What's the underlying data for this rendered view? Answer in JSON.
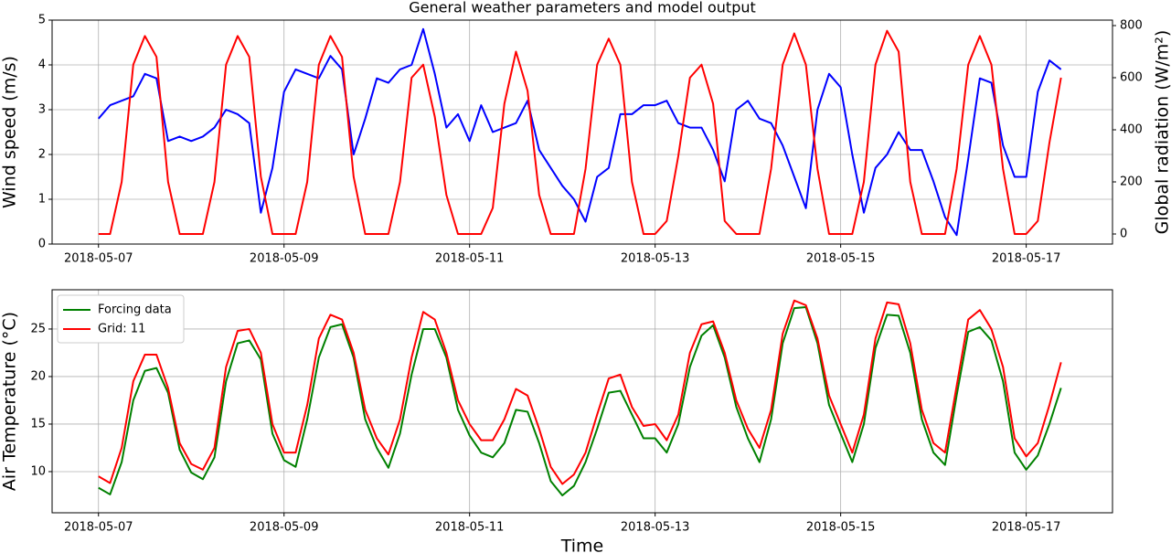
{
  "chart_data": [
    {
      "type": "line",
      "title": "General weather parameters and model output",
      "ylabel": "Wind speed (m/s)",
      "ylabel_color": "#0000ff",
      "y2label": "Global radiation (W/m²)",
      "y2label_color": "#ff0000",
      "x": [
        0,
        0.125,
        0.25,
        0.375,
        0.5,
        0.625,
        0.75,
        0.875,
        1,
        1.125,
        1.25,
        1.375,
        1.5,
        1.625,
        1.75,
        1.875,
        2,
        2.125,
        2.25,
        2.375,
        2.5,
        2.625,
        2.75,
        2.875,
        3,
        3.125,
        3.25,
        3.375,
        3.5,
        3.625,
        3.75,
        3.875,
        4,
        4.125,
        4.25,
        4.375,
        4.5,
        4.625,
        4.75,
        4.875,
        5,
        5.125,
        5.25,
        5.375,
        5.5,
        5.625,
        5.75,
        5.875,
        6,
        6.125,
        6.25,
        6.375,
        6.5,
        6.625,
        6.75,
        6.875,
        7,
        7.125,
        7.25,
        7.375,
        7.5,
        7.625,
        7.75,
        7.875,
        8,
        8.125,
        8.25,
        8.375,
        8.5,
        8.625,
        8.75,
        8.875,
        9,
        9.125,
        9.25,
        9.375,
        9.5,
        9.625,
        9.75,
        9.875,
        10,
        10.125,
        10.25,
        10.375
      ],
      "xlim": [
        -0.5,
        10.93
      ],
      "xticks": [
        {
          "value": 0,
          "label": "2018-05-07"
        },
        {
          "value": 2,
          "label": "2018-05-09"
        },
        {
          "value": 4,
          "label": "2018-05-11"
        },
        {
          "value": 6,
          "label": "2018-05-13"
        },
        {
          "value": 8,
          "label": "2018-05-15"
        },
        {
          "value": 10,
          "label": "2018-05-17"
        }
      ],
      "ylim": [
        0,
        5
      ],
      "yticks": [
        0,
        1,
        2,
        3,
        4,
        5
      ],
      "y2lim": [
        -38.6,
        821
      ],
      "y2ticks": [
        0,
        200,
        400,
        600,
        800
      ],
      "grid": true,
      "series": [
        {
          "name": "Wind speed",
          "color": "#0000ff",
          "values": [
            2.8,
            3.1,
            3.2,
            3.3,
            3.8,
            3.7,
            2.3,
            2.4,
            2.3,
            2.4,
            2.6,
            3.0,
            2.9,
            2.7,
            0.7,
            1.7,
            3.4,
            3.9,
            3.8,
            3.7,
            4.2,
            3.9,
            2.0,
            2.8,
            3.7,
            3.6,
            3.9,
            4.0,
            4.8,
            3.8,
            2.6,
            2.9,
            2.3,
            3.1,
            2.5,
            2.6,
            2.7,
            3.2,
            2.1,
            1.7,
            1.3,
            1.0,
            0.5,
            1.5,
            1.7,
            2.9,
            2.9,
            3.1,
            3.1,
            3.2,
            2.7,
            2.6,
            2.6,
            2.1,
            1.4,
            3.0,
            3.2,
            2.8,
            2.7,
            2.2,
            1.5,
            0.8,
            3.0,
            3.8,
            3.5,
            2.0,
            0.7,
            1.7,
            2.0,
            2.5,
            2.1,
            2.1,
            1.4,
            0.6,
            0.2,
            1.9,
            3.7,
            3.6,
            2.2,
            1.5,
            1.5,
            3.4,
            4.1,
            3.9
          ]
        },
        {
          "name": "Global radiation",
          "color": "#ff0000",
          "axis": "y2",
          "values": [
            0,
            0,
            200,
            650,
            760,
            680,
            200,
            0,
            0,
            0,
            200,
            650,
            760,
            680,
            220,
            0,
            0,
            0,
            200,
            650,
            760,
            680,
            220,
            0,
            0,
            0,
            200,
            600,
            650,
            450,
            150,
            0,
            0,
            0,
            100,
            500,
            700,
            550,
            150,
            0,
            0,
            0,
            250,
            650,
            750,
            650,
            200,
            0,
            0,
            50,
            300,
            600,
            650,
            500,
            50,
            0,
            0,
            0,
            250,
            650,
            770,
            650,
            250,
            0,
            0,
            0,
            200,
            650,
            780,
            700,
            200,
            0,
            0,
            0,
            250,
            650,
            760,
            650,
            250,
            0,
            0,
            50,
            350,
            600
          ]
        }
      ]
    },
    {
      "type": "line",
      "xlabel": "Time",
      "ylabel": "Air Temperature (°C)",
      "ylabel_color": "#0000ff",
      "x": [
        0,
        0.125,
        0.25,
        0.375,
        0.5,
        0.625,
        0.75,
        0.875,
        1,
        1.125,
        1.25,
        1.375,
        1.5,
        1.625,
        1.75,
        1.875,
        2,
        2.125,
        2.25,
        2.375,
        2.5,
        2.625,
        2.75,
        2.875,
        3,
        3.125,
        3.25,
        3.375,
        3.5,
        3.625,
        3.75,
        3.875,
        4,
        4.125,
        4.25,
        4.375,
        4.5,
        4.625,
        4.75,
        4.875,
        5,
        5.125,
        5.25,
        5.375,
        5.5,
        5.625,
        5.75,
        5.875,
        6,
        6.125,
        6.25,
        6.375,
        6.5,
        6.625,
        6.75,
        6.875,
        7,
        7.125,
        7.25,
        7.375,
        7.5,
        7.625,
        7.75,
        7.875,
        8,
        8.125,
        8.25,
        8.375,
        8.5,
        8.625,
        8.75,
        8.875,
        9,
        9.125,
        9.25,
        9.375,
        9.5,
        9.625,
        9.75,
        9.875,
        10,
        10.125,
        10.25,
        10.375
      ],
      "xlim": [
        -0.5,
        10.93
      ],
      "xticks": [
        {
          "value": 0,
          "label": "2018-05-07"
        },
        {
          "value": 2,
          "label": "2018-05-09"
        },
        {
          "value": 4,
          "label": "2018-05-11"
        },
        {
          "value": 6,
          "label": "2018-05-13"
        },
        {
          "value": 8,
          "label": "2018-05-15"
        },
        {
          "value": 10,
          "label": "2018-05-17"
        }
      ],
      "ylim": [
        5.67,
        29.13
      ],
      "yticks": [
        10,
        15,
        20,
        25
      ],
      "grid": true,
      "legend": "upper left",
      "series": [
        {
          "name": "Forcing data",
          "color": "#008000",
          "values": [
            8.3,
            7.6,
            11.0,
            17.5,
            20.6,
            20.9,
            18.3,
            12.3,
            9.9,
            9.2,
            11.5,
            19.5,
            23.5,
            23.8,
            21.8,
            14.0,
            11.2,
            10.5,
            15.5,
            22.0,
            25.2,
            25.5,
            22.0,
            15.5,
            12.5,
            10.4,
            14.0,
            20.2,
            25.0,
            25.0,
            22.0,
            16.5,
            13.8,
            12.0,
            11.5,
            13.0,
            16.5,
            16.3,
            13.0,
            9.0,
            7.5,
            8.5,
            11.0,
            14.5,
            18.3,
            18.5,
            16.0,
            13.5,
            13.5,
            12.0,
            15.0,
            21.0,
            24.3,
            25.4,
            22.0,
            16.8,
            13.5,
            11.0,
            15.5,
            23.5,
            27.2,
            27.3,
            23.5,
            17.0,
            14.0,
            11.0,
            15.0,
            23.0,
            26.5,
            26.4,
            22.5,
            15.5,
            12.0,
            10.7,
            18.0,
            24.7,
            25.2,
            23.8,
            19.5,
            12.0,
            10.2,
            11.7,
            15.0,
            18.8
          ]
        },
        {
          "name": "Grid: 11",
          "color": "#ff0000",
          "values": [
            9.5,
            8.8,
            12.5,
            19.5,
            22.3,
            22.3,
            18.8,
            13.0,
            10.8,
            10.2,
            12.5,
            21.0,
            24.8,
            25.0,
            22.5,
            15.0,
            12.0,
            12.0,
            17.0,
            24.0,
            26.5,
            26.0,
            22.5,
            16.5,
            13.5,
            11.8,
            15.5,
            22.0,
            26.8,
            26.0,
            22.5,
            17.5,
            15.0,
            13.3,
            13.3,
            15.5,
            18.7,
            18.0,
            14.5,
            10.5,
            8.7,
            9.7,
            12.0,
            16.0,
            19.8,
            20.2,
            16.8,
            14.8,
            15.0,
            13.3,
            16.0,
            22.5,
            25.5,
            25.8,
            22.5,
            17.5,
            14.5,
            12.5,
            16.5,
            24.5,
            28.0,
            27.5,
            24.0,
            18.0,
            15.0,
            12.0,
            16.0,
            24.0,
            27.8,
            27.6,
            23.5,
            16.5,
            13.0,
            12.0,
            19.0,
            26.0,
            27.0,
            25.0,
            21.0,
            13.5,
            11.6,
            13.0,
            17.0,
            21.5
          ]
        }
      ]
    }
  ]
}
